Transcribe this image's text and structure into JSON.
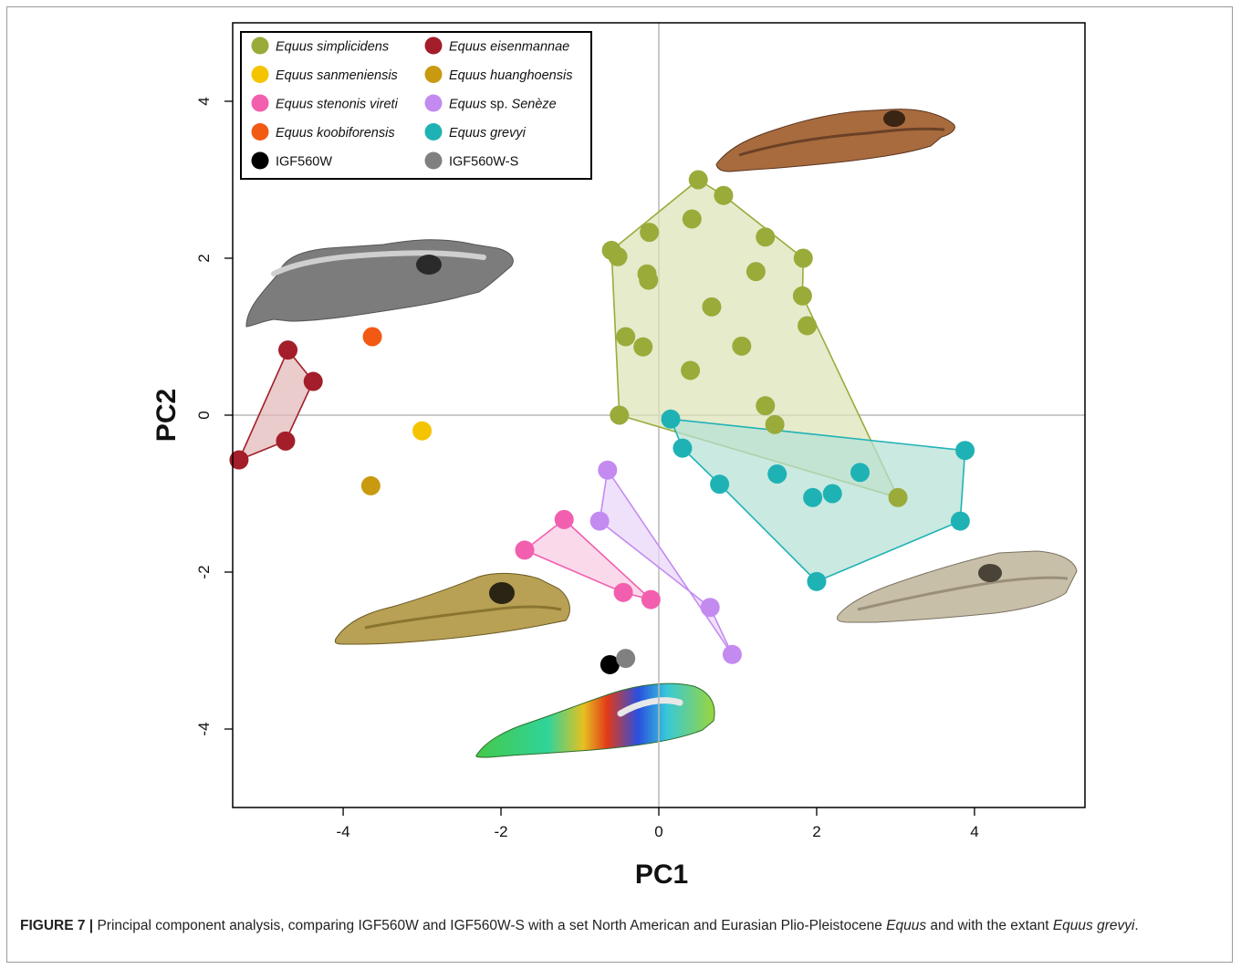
{
  "chart_data": {
    "type": "scatter",
    "xlabel": "PC1",
    "ylabel": "PC2",
    "xlim": [
      -5.4,
      5.4
    ],
    "ylim": [
      -5,
      5
    ],
    "xticks": [
      -4,
      -2,
      0,
      2,
      4
    ],
    "yticks": [
      -4,
      -2,
      0,
      2,
      4
    ],
    "reference_lines": {
      "x": 0,
      "y": 0
    },
    "legend_position": "top-left",
    "series": [
      {
        "name": "Equus simplicidens",
        "italic": "all",
        "color": "#9aab3a",
        "fill": "#dde3b8",
        "hull": true,
        "points": [
          [
            0.5,
            3.0
          ],
          [
            0.82,
            2.8
          ],
          [
            0.42,
            2.5
          ],
          [
            -0.12,
            2.33
          ],
          [
            1.35,
            2.27
          ],
          [
            -0.6,
            2.1
          ],
          [
            -0.52,
            2.02
          ],
          [
            1.83,
            2.0
          ],
          [
            -0.15,
            1.8
          ],
          [
            -0.13,
            1.72
          ],
          [
            1.23,
            1.83
          ],
          [
            1.82,
            1.52
          ],
          [
            0.67,
            1.38
          ],
          [
            1.88,
            1.14
          ],
          [
            -0.42,
            1.0
          ],
          [
            -0.2,
            0.87
          ],
          [
            1.05,
            0.88
          ],
          [
            0.4,
            0.57
          ],
          [
            1.35,
            0.12
          ],
          [
            -0.5,
            0.0
          ],
          [
            1.47,
            -0.12
          ],
          [
            3.03,
            -1.05
          ]
        ],
        "hull_order": [
          0,
          1,
          7,
          11,
          21,
          19,
          5
        ]
      },
      {
        "name": "Equus eisenmannae",
        "italic": "all",
        "color": "#a31e2a",
        "fill": "#e0b9b7",
        "hull": true,
        "points": [
          [
            -4.7,
            0.83
          ],
          [
            -4.38,
            0.43
          ],
          [
            -4.73,
            -0.33
          ],
          [
            -5.32,
            -0.57
          ]
        ],
        "hull_order": [
          0,
          1,
          2,
          3
        ]
      },
      {
        "name": "Equus sanmeniensis",
        "italic": "all",
        "color": "#f5c400",
        "hull": false,
        "points": [
          [
            -3.0,
            -0.2
          ]
        ]
      },
      {
        "name": "Equus huanghoensis",
        "italic": "all",
        "color": "#c99a10",
        "hull": false,
        "points": [
          [
            -3.65,
            -0.9
          ]
        ]
      },
      {
        "name": "Equus stenonis vireti",
        "italic": "all",
        "color": "#f25fae",
        "fill": "#f8cbe3",
        "hull": true,
        "points": [
          [
            -1.2,
            -1.33
          ],
          [
            -1.7,
            -1.72
          ],
          [
            -0.45,
            -2.26
          ],
          [
            -0.1,
            -2.35
          ]
        ],
        "hull_order": [
          0,
          3,
          2,
          1
        ]
      },
      {
        "name": "Equus sp. Senèze",
        "italic": "species",
        "color": "#c38bf0",
        "fill": "#ead6fa",
        "hull": true,
        "points": [
          [
            -0.65,
            -0.7
          ],
          [
            -0.75,
            -1.35
          ],
          [
            0.65,
            -2.45
          ],
          [
            0.93,
            -3.05
          ]
        ],
        "hull_order": [
          0,
          3,
          2,
          1
        ]
      },
      {
        "name": "Equus koobiforensis",
        "italic": "all",
        "color": "#f25a14",
        "hull": false,
        "points": [
          [
            -3.63,
            1.0
          ]
        ]
      },
      {
        "name": "Equus grevyi",
        "italic": "all",
        "color": "#1fb2b5",
        "fill": "#b6e0d6",
        "hull": true,
        "points": [
          [
            0.15,
            -0.05
          ],
          [
            0.3,
            -0.42
          ],
          [
            3.88,
            -0.45
          ],
          [
            2.55,
            -0.73
          ],
          [
            1.5,
            -0.75
          ],
          [
            0.77,
            -0.88
          ],
          [
            2.2,
            -1.0
          ],
          [
            1.95,
            -1.05
          ],
          [
            3.82,
            -1.35
          ],
          [
            2.0,
            -2.12
          ]
        ],
        "hull_order": [
          0,
          2,
          8,
          9,
          5,
          1
        ]
      },
      {
        "name": "IGF560W",
        "italic": "none",
        "color": "#000000",
        "hull": false,
        "points": [
          [
            -0.62,
            -3.18
          ]
        ]
      },
      {
        "name": "IGF560W-S",
        "italic": "none",
        "color": "#808080",
        "hull": false,
        "points": [
          [
            -0.42,
            -3.1
          ]
        ]
      }
    ],
    "legend_order": [
      "Equus simplicidens",
      "Equus eisenmannae",
      "Equus sanmeniensis",
      "Equus huanghoensis",
      "Equus stenonis vireti",
      "Equus sp. Senèze",
      "Equus koobiforensis",
      "Equus grevyi",
      "IGF560W",
      "IGF560W-S"
    ]
  },
  "caption": {
    "label": "FIGURE 7 |",
    "text_a": " Principal component analysis, comparing IGF560W and IGF560W-S with a set North American and Eurasian Plio-Pleistocene ",
    "text_b": "Equus",
    "text_c": " and with the extant ",
    "text_d": "Equus grevyi",
    "text_e": "."
  }
}
